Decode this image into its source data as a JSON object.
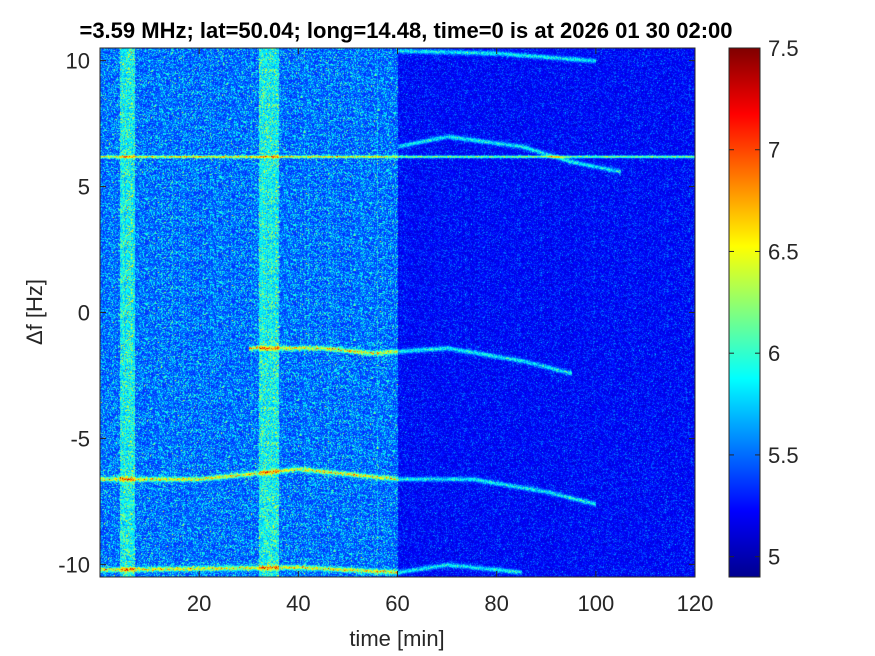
{
  "chart_data": {
    "type": "heatmap",
    "title": "=3.59 MHz;  lat=50.04; long=14.48, time=0 is at 2026 01 30 02:00",
    "xlabel": "time [min]",
    "ylabel": "Δf [Hz]",
    "xlim": [
      0,
      120
    ],
    "ylim": [
      -10.5,
      10.5
    ],
    "xticks": [
      20,
      40,
      60,
      80,
      100,
      120
    ],
    "xtick_labels": [
      "20",
      "40",
      "60",
      "80",
      "100",
      "120"
    ],
    "yticks": [
      10,
      5,
      0,
      -5,
      -10
    ],
    "ytick_labels": [
      "10",
      "5",
      "0",
      "-5",
      "-10"
    ],
    "colorbar": {
      "colormap": "jet",
      "clim": [
        4.9,
        7.5
      ],
      "ticks": [
        7.5,
        7,
        6.5,
        6,
        5.5,
        5
      ],
      "tick_labels": [
        "7.5",
        "7",
        "6.5",
        "6",
        "5.5",
        "5"
      ]
    },
    "features": {
      "constant_carrier_hz": 6.2,
      "traces": [
        {
          "points": [
            [
              0,
              -6.6
            ],
            [
              20,
              -6.6
            ],
            [
              40,
              -6.2
            ],
            [
              60,
              -6.6
            ],
            [
              75,
              -6.6
            ],
            [
              90,
              -7.1
            ],
            [
              100,
              -7.6
            ]
          ]
        },
        {
          "points": [
            [
              30,
              -1.4
            ],
            [
              45,
              -1.4
            ],
            [
              55,
              -1.6
            ],
            [
              70,
              -1.4
            ],
            [
              85,
              -1.9
            ],
            [
              95,
              -2.4
            ]
          ]
        },
        {
          "points": [
            [
              0,
              -10.2
            ],
            [
              40,
              -10.1
            ],
            [
              60,
              -10.3
            ],
            [
              70,
              -10.0
            ],
            [
              85,
              -10.3
            ]
          ]
        },
        {
          "points": [
            [
              60,
              6.6
            ],
            [
              70,
              7.0
            ],
            [
              85,
              6.6
            ],
            [
              95,
              6.0
            ],
            [
              105,
              5.6
            ]
          ]
        },
        {
          "points": [
            [
              60,
              10.4
            ],
            [
              80,
              10.3
            ],
            [
              100,
              10.0
            ]
          ]
        }
      ],
      "bright_vertical_bands_min": [
        [
          4,
          7
        ],
        [
          32,
          36
        ]
      ],
      "noise_drop_after_min": 60
    }
  }
}
